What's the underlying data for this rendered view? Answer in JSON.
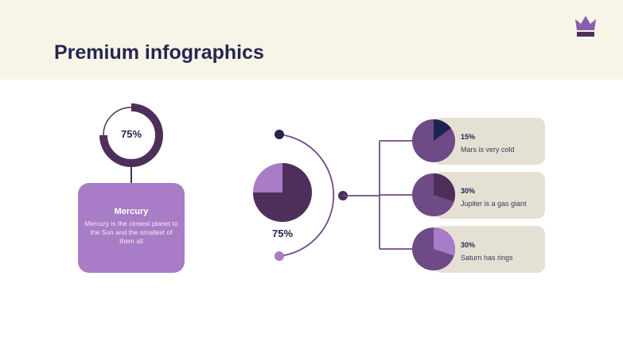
{
  "header": {
    "title": "Premium infographics",
    "logo_icon": "crown-icon"
  },
  "donut": {
    "value": 75,
    "label": "75%"
  },
  "mercury_card": {
    "title": "Mercury",
    "text": "Mercury is the closest planet to the Sun and the smallest of them all"
  },
  "center_pie": {
    "value": 75,
    "label": "75%"
  },
  "items": [
    {
      "percent": 15,
      "label": "15%",
      "text": "Mars is very cold",
      "slice_color": "#1f2350"
    },
    {
      "percent": 30,
      "label": "30%",
      "text": "Jupiter is a gas giant",
      "slice_color": "#4e2f5a"
    },
    {
      "percent": 30,
      "label": "30%",
      "text": "Saturn has rings",
      "slice_color": "#a87cc6"
    }
  ],
  "colors": {
    "header_bg": "#f8f4e7",
    "dark_purple": "#4e2f5a",
    "mid_purple": "#6e4a86",
    "light_purple": "#a87cc6",
    "navy": "#262650",
    "card_bg": "#e5e0d4"
  }
}
